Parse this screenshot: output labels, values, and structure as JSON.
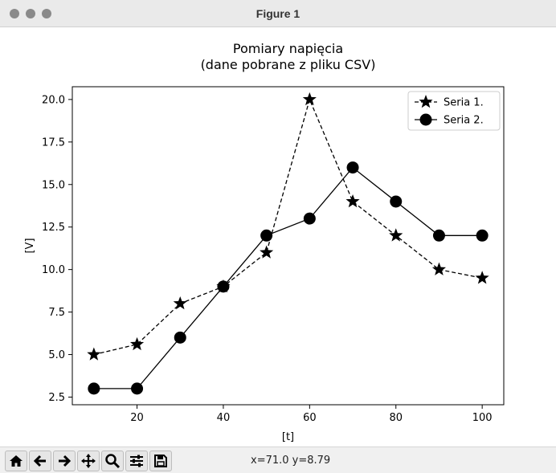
{
  "window": {
    "title": "Figure 1",
    "buttons": [
      "close",
      "minimize",
      "zoom"
    ]
  },
  "toolbar": {
    "tools": [
      {
        "name": "home-button",
        "icon": "home-icon"
      },
      {
        "name": "back-button",
        "icon": "arrow-left-icon"
      },
      {
        "name": "forward-button",
        "icon": "arrow-right-icon"
      },
      {
        "name": "pan-button",
        "icon": "move-icon"
      },
      {
        "name": "zoom-button",
        "icon": "magnifier-icon"
      },
      {
        "name": "configure-subplots-button",
        "icon": "sliders-icon"
      },
      {
        "name": "save-button",
        "icon": "floppy-icon"
      }
    ],
    "coords": "x=71.0 y=8.79"
  },
  "chart_data": {
    "type": "line",
    "title": "Pomiary napięcia",
    "subtitle": "(dane pobrane z pliku CSV)",
    "xlabel": "[t]",
    "ylabel": "[V]",
    "x": [
      10,
      20,
      30,
      40,
      50,
      60,
      70,
      80,
      90,
      100
    ],
    "xlim": [
      5,
      105
    ],
    "ylim": [
      2.05,
      20.75
    ],
    "xticks": [
      20,
      40,
      60,
      80,
      100
    ],
    "yticks": [
      2.5,
      5.0,
      7.5,
      10.0,
      12.5,
      15.0,
      17.5,
      20.0
    ],
    "ytick_labels": [
      "2.5",
      "5.0",
      "7.5",
      "10.0",
      "12.5",
      "15.0",
      "17.5",
      "20.0"
    ],
    "grid": false,
    "legend_position": "top-right",
    "series": [
      {
        "name": "Seria 1.",
        "marker": "star",
        "linestyle": "dashed",
        "color": "#000000",
        "values": [
          5.0,
          5.6,
          8.0,
          9.0,
          11.0,
          20.0,
          14.0,
          12.0,
          10.0,
          9.5
        ]
      },
      {
        "name": "Seria 2.",
        "marker": "circle",
        "linestyle": "solid",
        "color": "#000000",
        "values": [
          3.0,
          3.0,
          6.0,
          9.0,
          12.0,
          13.0,
          16.0,
          14.0,
          12.0,
          12.0
        ]
      }
    ]
  }
}
